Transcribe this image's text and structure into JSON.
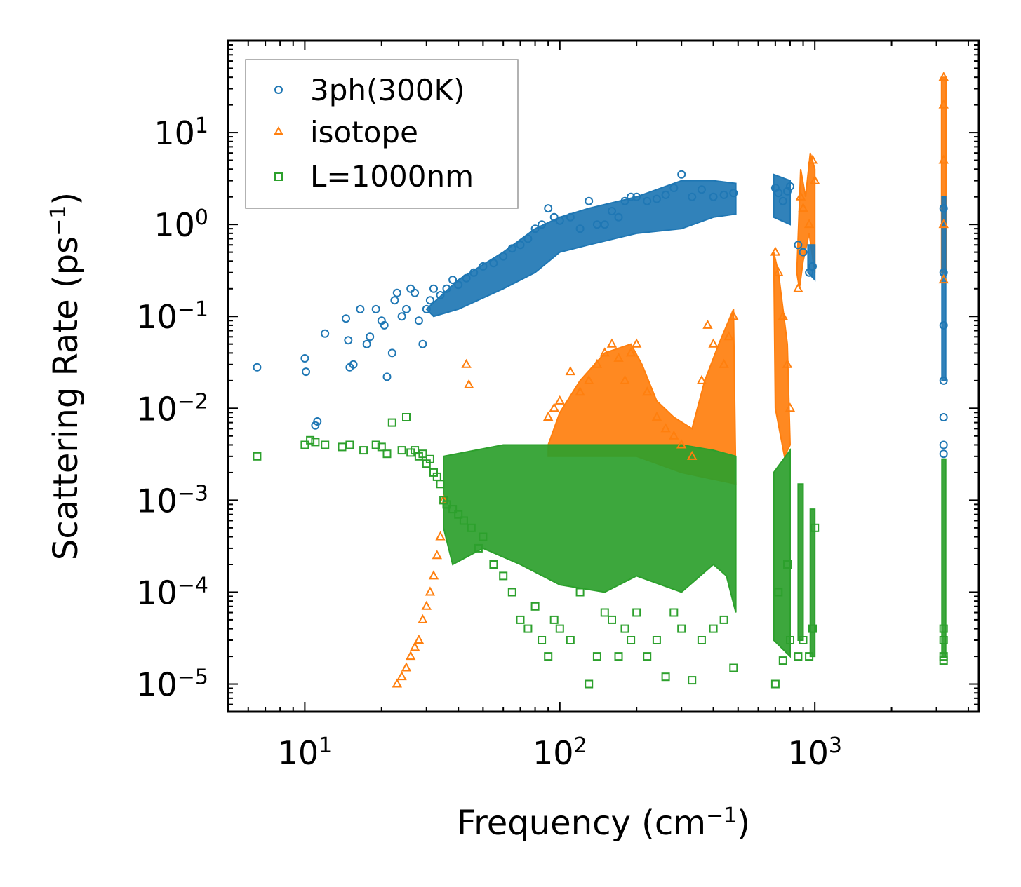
{
  "chart_data": {
    "type": "scatter",
    "title": "",
    "xlabel": "Frequency (cm",
    "xlabel_sup": "−1",
    "xlabel_end": ")",
    "ylabel": "Scattering Rate (ps",
    "ylabel_sup": "−1",
    "ylabel_end": ")",
    "xscale": "log",
    "yscale": "log",
    "xlim": [
      5,
      4400
    ],
    "ylim": [
      5e-06,
      100
    ],
    "x_ticks": [
      {
        "value": 10,
        "base": "10",
        "exp": "1"
      },
      {
        "value": 100,
        "base": "10",
        "exp": "2"
      },
      {
        "value": 1000,
        "base": "10",
        "exp": "3"
      }
    ],
    "y_ticks": [
      {
        "value": 1e-05,
        "base": "10",
        "exp": "−5"
      },
      {
        "value": 0.0001,
        "base": "10",
        "exp": "−4"
      },
      {
        "value": 0.001,
        "base": "10",
        "exp": "−3"
      },
      {
        "value": 0.01,
        "base": "10",
        "exp": "−2"
      },
      {
        "value": 0.1,
        "base": "10",
        "exp": "−1"
      },
      {
        "value": 1,
        "base": "10",
        "exp": "0"
      },
      {
        "value": 10,
        "base": "10",
        "exp": "1"
      }
    ],
    "legend_position": "top-left",
    "series": [
      {
        "name": "3ph(300K)",
        "marker": "circle",
        "color": "#1f77b4",
        "x": [
          6.5,
          10,
          10.1,
          11,
          11.2,
          12,
          14.5,
          14.8,
          15,
          15.5,
          16.5,
          17.5,
          18,
          19,
          20,
          20.5,
          21,
          22,
          22.5,
          23,
          24,
          25,
          26,
          27,
          28,
          29,
          30,
          31,
          32,
          34,
          36,
          38,
          40,
          43,
          46,
          50,
          55,
          60,
          65,
          70,
          75,
          80,
          85,
          90,
          95,
          100,
          110,
          120,
          130,
          140,
          150,
          160,
          170,
          180,
          190,
          200,
          220,
          240,
          260,
          280,
          300,
          330,
          360,
          400,
          440,
          480,
          700,
          720,
          750,
          780,
          800,
          860,
          900,
          950,
          980,
          3200,
          3200,
          3200,
          3200,
          3200,
          3200,
          3200
        ],
        "y": [
          0.028,
          0.035,
          0.025,
          0.0065,
          0.0072,
          0.065,
          0.095,
          0.055,
          0.028,
          0.03,
          0.12,
          0.05,
          0.06,
          0.12,
          0.09,
          0.08,
          0.022,
          0.04,
          0.15,
          0.18,
          0.1,
          0.12,
          0.2,
          0.18,
          0.09,
          0.05,
          0.12,
          0.15,
          0.2,
          0.17,
          0.2,
          0.25,
          0.22,
          0.26,
          0.3,
          0.35,
          0.38,
          0.45,
          0.55,
          0.6,
          0.7,
          0.9,
          1.0,
          1.5,
          1.2,
          1.1,
          1.2,
          0.9,
          1.8,
          1.0,
          1.0,
          1.4,
          1.2,
          1.8,
          2.0,
          2.0,
          1.8,
          1.9,
          2.1,
          2.5,
          3.5,
          2.0,
          2.4,
          2.0,
          2.1,
          2.2,
          2.5,
          2.2,
          1.8,
          2.3,
          2.6,
          0.6,
          0.5,
          0.3,
          0.35,
          1.5,
          0.3,
          0.08,
          0.02,
          0.008,
          0.004,
          0.0032
        ]
      },
      {
        "name": "isotope",
        "marker": "triangle",
        "color": "#ff7f0e",
        "x": [
          23,
          24,
          25,
          26,
          27,
          28,
          29,
          30,
          31,
          32,
          33,
          34,
          35,
          43,
          44,
          90,
          95,
          100,
          110,
          120,
          130,
          140,
          150,
          160,
          170,
          180,
          190,
          200,
          220,
          240,
          260,
          280,
          300,
          330,
          360,
          380,
          400,
          440,
          460,
          480,
          700,
          720,
          750,
          780,
          800,
          860,
          880,
          900,
          950,
          980,
          1000,
          3200,
          3200,
          3200,
          3200,
          3200
        ],
        "y": [
          1e-05,
          1.2e-05,
          1.5e-05,
          2e-05,
          2.5e-05,
          3e-05,
          5e-05,
          7e-05,
          0.0001,
          0.00015,
          0.00025,
          0.0004,
          0.001,
          0.03,
          0.018,
          0.008,
          0.01,
          0.012,
          0.025,
          0.015,
          0.02,
          0.03,
          0.04,
          0.05,
          0.035,
          0.02,
          0.04,
          0.05,
          0.015,
          0.008,
          0.006,
          0.005,
          0.004,
          0.003,
          0.02,
          0.08,
          0.05,
          0.03,
          0.06,
          0.1,
          0.5,
          0.3,
          0.1,
          0.03,
          0.01,
          0.2,
          2.0,
          1.5,
          1.0,
          5.0,
          3.0,
          40,
          20,
          5.0,
          1.0,
          0.25
        ]
      },
      {
        "name": "L=1000nm",
        "marker": "square",
        "color": "#2ca02c",
        "x": [
          6.5,
          10,
          10.5,
          11,
          12,
          14,
          15,
          17,
          19,
          20,
          21,
          22,
          24,
          25,
          26,
          27,
          28,
          29,
          30,
          31,
          32,
          33,
          34,
          35,
          36,
          38,
          40,
          42,
          45,
          48,
          50,
          55,
          60,
          65,
          70,
          75,
          80,
          85,
          90,
          95,
          100,
          110,
          120,
          130,
          140,
          150,
          160,
          170,
          180,
          190,
          200,
          220,
          240,
          260,
          280,
          300,
          330,
          360,
          400,
          440,
          480,
          700,
          720,
          750,
          780,
          800,
          860,
          900,
          950,
          980,
          1000,
          3200,
          3200,
          3200,
          3200
        ],
        "y": [
          0.003,
          0.004,
          0.0045,
          0.0043,
          0.004,
          0.0038,
          0.004,
          0.0035,
          0.004,
          0.0038,
          0.0032,
          0.007,
          0.0035,
          0.008,
          0.0033,
          0.0035,
          0.003,
          0.0032,
          0.0025,
          0.0028,
          0.002,
          0.0018,
          0.0015,
          0.001,
          0.0009,
          0.0008,
          0.0007,
          0.0006,
          0.0005,
          0.0003,
          0.0004,
          0.0002,
          0.00015,
          0.0001,
          5e-05,
          4e-05,
          7e-05,
          3e-05,
          2e-05,
          5e-05,
          4e-05,
          3e-05,
          0.0001,
          1e-05,
          2e-05,
          6e-05,
          5e-05,
          2e-05,
          4e-05,
          3e-05,
          6e-05,
          2e-05,
          3e-05,
          1.2e-05,
          6e-05,
          4e-05,
          1.1e-05,
          3e-05,
          4e-05,
          5e-05,
          1.5e-05,
          1e-05,
          0.0001,
          1.8e-05,
          0.0002,
          3e-05,
          2e-05,
          3e-05,
          2e-05,
          4e-05,
          0.0005,
          1.8e-05,
          2e-05,
          3e-05,
          4e-05
        ]
      }
    ]
  }
}
